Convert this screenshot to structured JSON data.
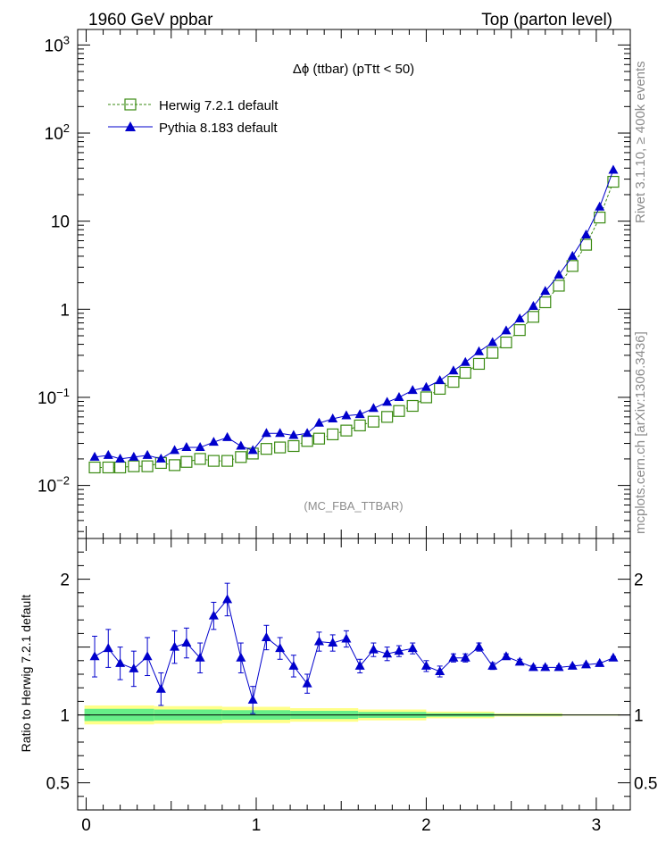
{
  "header": {
    "left": "1960 GeV ppbar",
    "right": "Top (parton level)"
  },
  "side_text": {
    "rivet": "Rivet 3.1.10, ≥ 400k events",
    "mcplots": "mcplots.cern.ch [arXiv:1306.3436]"
  },
  "colors": {
    "herwig": "#3a8a12",
    "pythia": "#0000cc",
    "band_outer": "#ffff88",
    "band_inner": "#66ee88"
  },
  "chart_data": [
    {
      "type": "line",
      "panel": "main",
      "title": "Δϕ (ttbar) (pTtt < 50)",
      "analysis_label": "(MC_FBA_TTBAR)",
      "yscale": "log",
      "ylim": [
        0.0025,
        1500
      ],
      "xlim": [
        -0.05,
        3.2
      ],
      "ytick_labels": [
        {
          "value": 0.01,
          "base": "10",
          "exp": "−2"
        },
        {
          "value": 0.1,
          "base": "10",
          "exp": "−1"
        },
        {
          "value": 1,
          "base": "1",
          "exp": ""
        },
        {
          "value": 10,
          "base": "10",
          "exp": ""
        },
        {
          "value": 100,
          "base": "10",
          "exp": "2"
        },
        {
          "value": 1000,
          "base": "10",
          "exp": "3"
        }
      ],
      "legend_position": "top-left",
      "series": [
        {
          "name": "Herwig 7.2.1 default",
          "marker": "open-square",
          "linestyle": "dashed",
          "x": [
            0.05,
            0.13,
            0.2,
            0.28,
            0.36,
            0.44,
            0.52,
            0.59,
            0.67,
            0.75,
            0.83,
            0.91,
            0.98,
            1.06,
            1.14,
            1.22,
            1.3,
            1.37,
            1.45,
            1.53,
            1.61,
            1.69,
            1.77,
            1.84,
            1.92,
            2.0,
            2.08,
            2.16,
            2.23,
            2.31,
            2.39,
            2.47,
            2.55,
            2.63,
            2.7,
            2.78,
            2.86,
            2.94,
            3.02,
            3.1
          ],
          "y": [
            0.016,
            0.016,
            0.016,
            0.0165,
            0.0165,
            0.018,
            0.017,
            0.0185,
            0.02,
            0.019,
            0.019,
            0.021,
            0.023,
            0.026,
            0.027,
            0.028,
            0.032,
            0.034,
            0.038,
            0.042,
            0.048,
            0.053,
            0.06,
            0.07,
            0.08,
            0.1,
            0.125,
            0.15,
            0.19,
            0.24,
            0.32,
            0.42,
            0.58,
            0.82,
            1.2,
            1.85,
            3.1,
            5.4,
            11.0,
            28.0
          ]
        },
        {
          "name": "Pythia 8.183 default",
          "marker": "filled-triangle",
          "linestyle": "solid",
          "x": [
            0.05,
            0.13,
            0.2,
            0.28,
            0.36,
            0.44,
            0.52,
            0.59,
            0.67,
            0.75,
            0.83,
            0.91,
            0.98,
            1.06,
            1.14,
            1.22,
            1.3,
            1.37,
            1.45,
            1.53,
            1.61,
            1.69,
            1.77,
            1.84,
            1.92,
            2.0,
            2.08,
            2.16,
            2.23,
            2.31,
            2.39,
            2.47,
            2.55,
            2.63,
            2.7,
            2.78,
            2.86,
            2.94,
            3.02,
            3.1
          ],
          "y": [
            0.021,
            0.022,
            0.02,
            0.021,
            0.022,
            0.02,
            0.025,
            0.027,
            0.027,
            0.031,
            0.035,
            0.028,
            0.025,
            0.039,
            0.039,
            0.037,
            0.039,
            0.051,
            0.057,
            0.062,
            0.064,
            0.075,
            0.088,
            0.1,
            0.12,
            0.13,
            0.155,
            0.2,
            0.25,
            0.33,
            0.42,
            0.57,
            0.78,
            1.08,
            1.6,
            2.45,
            4.0,
            7.0,
            14.5,
            38.0
          ]
        }
      ]
    },
    {
      "type": "line",
      "panel": "ratio",
      "ylabel": "Ratio to Herwig 7.2.1 default",
      "xlabel": "",
      "ylim": [
        0.3,
        2.3
      ],
      "xlim": [
        -0.05,
        3.2
      ],
      "yticks": [
        "0.5",
        "1",
        "2"
      ],
      "xticks": [
        "0",
        "1",
        "2",
        "3"
      ],
      "reference_value": 1.0,
      "band": {
        "x_edges": [
          -0.01,
          0.4,
          0.8,
          1.2,
          1.6,
          2.0,
          2.4,
          2.8,
          3.14
        ],
        "outer_halfwidth": [
          0.07,
          0.065,
          0.06,
          0.05,
          0.04,
          0.025,
          0.012,
          0.005
        ],
        "inner_halfwidth": [
          0.045,
          0.04,
          0.035,
          0.03,
          0.022,
          0.013,
          0.006,
          0.003
        ]
      },
      "series": [
        {
          "name": "Pythia 8.183 default",
          "marker": "filled-triangle",
          "x": [
            0.05,
            0.13,
            0.2,
            0.28,
            0.36,
            0.44,
            0.52,
            0.59,
            0.67,
            0.75,
            0.83,
            0.91,
            0.98,
            1.06,
            1.14,
            1.22,
            1.3,
            1.37,
            1.45,
            1.53,
            1.61,
            1.69,
            1.77,
            1.84,
            1.92,
            2.0,
            2.08,
            2.16,
            2.23,
            2.31,
            2.39,
            2.47,
            2.55,
            2.63,
            2.7,
            2.78,
            2.86,
            2.94,
            3.02,
            3.1
          ],
          "y": [
            1.43,
            1.49,
            1.38,
            1.34,
            1.43,
            1.19,
            1.5,
            1.53,
            1.42,
            1.73,
            1.85,
            1.42,
            1.11,
            1.57,
            1.49,
            1.36,
            1.23,
            1.54,
            1.53,
            1.56,
            1.36,
            1.48,
            1.45,
            1.47,
            1.49,
            1.36,
            1.32,
            1.42,
            1.42,
            1.5,
            1.36,
            1.43,
            1.39,
            1.35,
            1.35,
            1.35,
            1.36,
            1.37,
            1.38,
            1.42
          ],
          "err": [
            0.15,
            0.14,
            0.12,
            0.13,
            0.14,
            0.12,
            0.12,
            0.11,
            0.11,
            0.1,
            0.12,
            0.11,
            0.1,
            0.09,
            0.08,
            0.08,
            0.07,
            0.07,
            0.06,
            0.06,
            0.05,
            0.05,
            0.05,
            0.04,
            0.04,
            0.04,
            0.04,
            0.03,
            0.03,
            0.03,
            0.025,
            0.02,
            0.02,
            0.015,
            0.015,
            0.012,
            0.01,
            0.01,
            0.01,
            0.01
          ]
        }
      ]
    }
  ]
}
